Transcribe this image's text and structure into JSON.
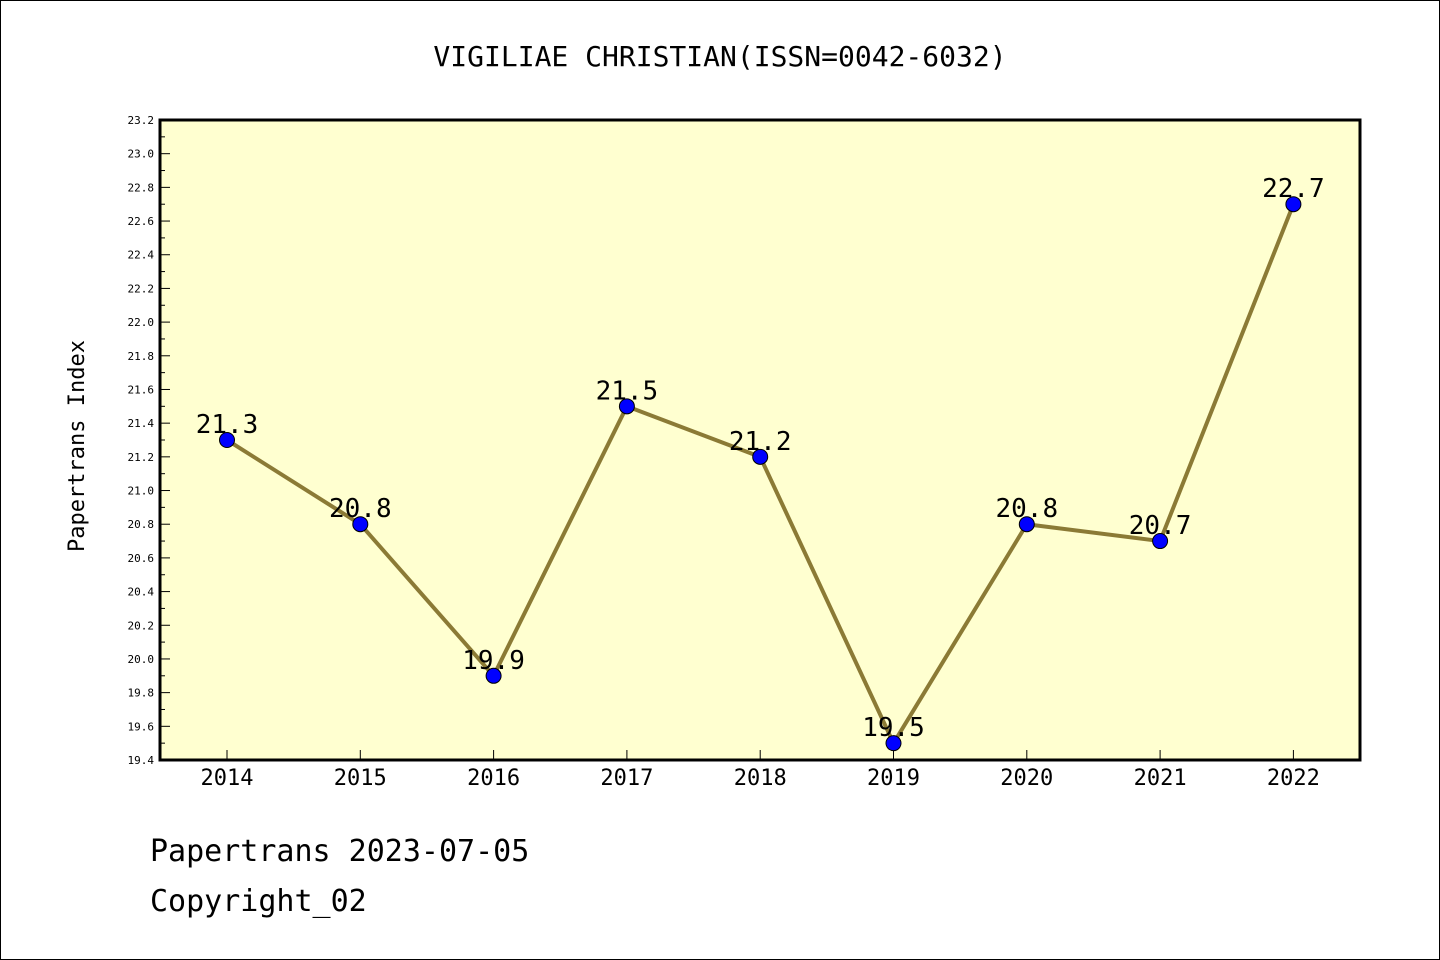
{
  "chart_data": {
    "type": "line",
    "title": "VIGILIAE CHRISTIAN(ISSN=0042-6032)",
    "xlabel": "",
    "ylabel": "Papertrans Index",
    "categories": [
      "2014",
      "2015",
      "2016",
      "2017",
      "2018",
      "2019",
      "2020",
      "2021",
      "2022"
    ],
    "values": [
      21.3,
      20.8,
      19.9,
      21.5,
      21.2,
      19.5,
      20.8,
      20.7,
      22.7
    ],
    "data_labels": [
      "21.3",
      "20.8",
      "19.9",
      "21.5",
      "21.2",
      "19.5",
      "20.8",
      "20.7",
      "22.7"
    ],
    "ylim": [
      19.4,
      23.2
    ],
    "yticks": [
      "19.4",
      "19.6",
      "19.8",
      "20.0",
      "20.2",
      "20.4",
      "20.6",
      "20.8",
      "21.0",
      "21.2",
      "21.4",
      "21.6",
      "21.8",
      "22.0",
      "22.2",
      "22.4",
      "22.6",
      "22.8",
      "23.0",
      "23.2"
    ],
    "grid": false,
    "colors": {
      "plot_background": "#ffffd0",
      "line": "#8b7a35",
      "marker": "#0000ff"
    }
  },
  "footer": {
    "line1": "Papertrans 2023-07-05",
    "line2": "Copyright_02"
  }
}
